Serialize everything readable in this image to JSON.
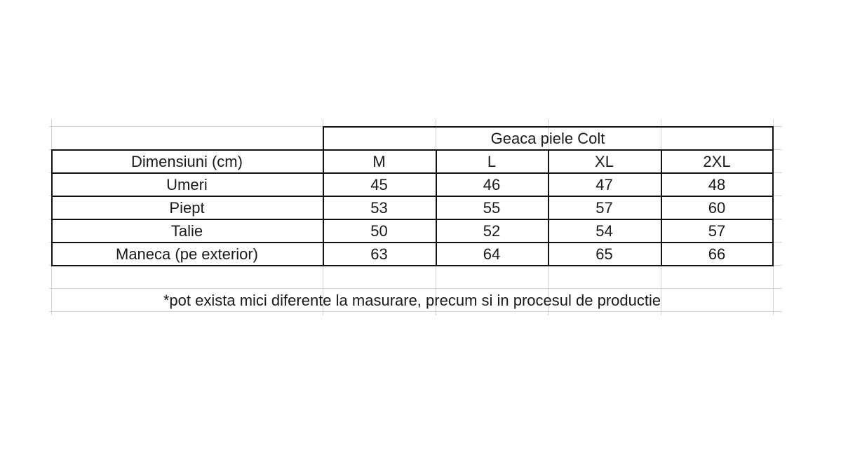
{
  "table": {
    "title": "Geaca piele Colt",
    "header_label": "Dimensiuni (cm)",
    "sizes": [
      "M",
      "L",
      "XL",
      "2XL"
    ],
    "rows": [
      {
        "label": "Umeri",
        "values": [
          "45",
          "46",
          "47",
          "48"
        ]
      },
      {
        "label": "Piept",
        "values": [
          "53",
          "55",
          "57",
          "60"
        ]
      },
      {
        "label": "Talie",
        "values": [
          "50",
          "52",
          "54",
          "57"
        ]
      },
      {
        "label": "Maneca (pe exterior)",
        "values": [
          "63",
          "64",
          "65",
          "66"
        ]
      }
    ],
    "footnote": "*pot exista mici diferente la masurare, precum si in procesul de productie"
  },
  "colors": {
    "border": "#111111",
    "gridline": "#d4d4d4"
  }
}
